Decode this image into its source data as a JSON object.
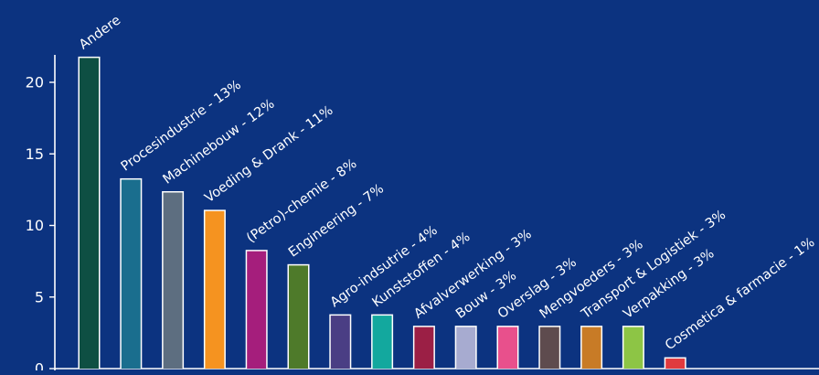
{
  "chart_data": {
    "type": "bar",
    "categories": [
      "Andere",
      "Procesindustrie - 13%",
      "Machinebouw - 12%",
      "Voeding & Drank - 11%",
      "(Petro)-chemie - 8%",
      "Engineering - 7%",
      "Agro-indsutrie - 4%",
      "Kunststoffen - 4%",
      "Afvalverwerking - 3%",
      "Bouw - 3%",
      "Overslag - 3%",
      "Mengvoeders - 3%",
      "Transport & Logistiek - 3%",
      "Verpakking - 3%",
      "Cosmetica & farmacie - 1%"
    ],
    "values": [
      21.7,
      13.2,
      12.3,
      11.0,
      8.2,
      7.2,
      3.7,
      3.7,
      2.9,
      2.9,
      2.9,
      2.9,
      2.9,
      2.9,
      0.7
    ],
    "colors": [
      "#0e4f43",
      "#1a6e8e",
      "#5d6e80",
      "#f59320",
      "#a51e7c",
      "#4e7a2a",
      "#4a3e84",
      "#13a89e",
      "#9b1f45",
      "#a7abd0",
      "#e8508c",
      "#5e4b4e",
      "#c87b26",
      "#8dc545",
      "#e03a3e"
    ],
    "y_ticks": [
      "0",
      "5",
      "10",
      "15",
      "20"
    ],
    "ylim": [
      0,
      23
    ],
    "grid": false,
    "legend": "none",
    "background_color": "#0c3380",
    "text_color": "#ffffff",
    "bar_outline_color": "#ffffff"
  }
}
